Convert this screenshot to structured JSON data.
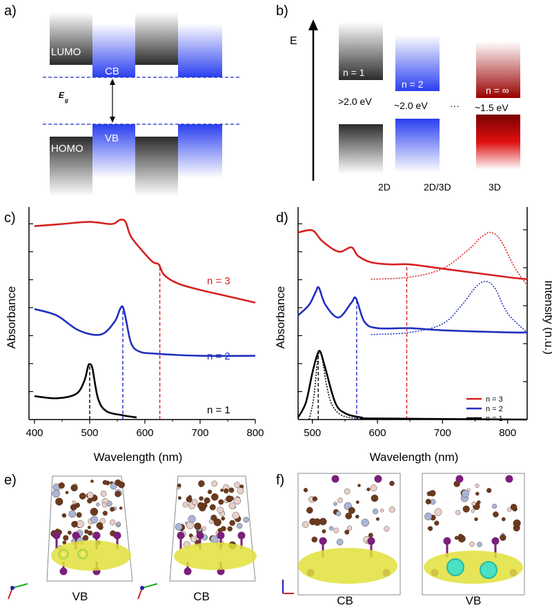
{
  "panels": {
    "a": {
      "label": "a)",
      "lumo": "LUMO",
      "cb": "CB",
      "homo": "HOMO",
      "vb": "VB",
      "eg": "E",
      "eg_sub": "g"
    },
    "b": {
      "label": "b)",
      "energy": "E",
      "n1": "n = 1",
      "n2": "n = 2",
      "ninf": "n = ∞",
      "e1": ">2.0 eV",
      "e2": "~2.0 eV",
      "e3": "~1.5 eV",
      "dots": "···",
      "d2": "2D",
      "d23": "2D/3D",
      "d3": "3D"
    },
    "c": {
      "label": "c)",
      "ylabel": "Absorbance",
      "xlabel": "Wavelength (nm)",
      "n3": "n = 3",
      "n2": "n = 2",
      "n1": "n = 1",
      "xticks": [
        "400",
        "500",
        "600",
        "700",
        "800"
      ]
    },
    "d": {
      "label": "d)",
      "ylabel": "Absorbance",
      "ylabel2": "Intensity (n.u.)",
      "xlabel": "Wavelength (nm)",
      "legend": [
        "n = 3",
        "n = 2",
        "n = 1"
      ],
      "xticks": [
        "500",
        "600",
        "700",
        "800"
      ]
    },
    "e": {
      "label": "e)",
      "vb": "VB",
      "cb": "CB"
    },
    "f": {
      "label": "f)",
      "cb": "CB",
      "vb": "VB"
    }
  },
  "colors": {
    "red": "#d62020",
    "blue": "#1f2fbf",
    "black": "#000000",
    "gray": "#555555"
  },
  "chart_data": [
    {
      "type": "line",
      "panel": "c",
      "xlabel": "Wavelength (nm)",
      "ylabel": "Absorbance",
      "xlim": [
        390,
        800
      ],
      "series": [
        {
          "name": "n = 3",
          "color": "#d62020",
          "x": [
            400,
            450,
            500,
            540,
            555,
            565,
            575,
            600,
            615,
            625,
            635,
            660,
            700,
            750,
            800
          ],
          "y": [
            0.91,
            0.92,
            0.93,
            0.92,
            0.94,
            0.93,
            0.86,
            0.78,
            0.74,
            0.73,
            0.68,
            0.64,
            0.61,
            0.58,
            0.55
          ]
        },
        {
          "name": "n = 2",
          "color": "#1f2fbf",
          "x": [
            400,
            440,
            480,
            520,
            545,
            555,
            560,
            565,
            575,
            590,
            620,
            700,
            800
          ],
          "y": [
            0.52,
            0.49,
            0.42,
            0.4,
            0.46,
            0.52,
            0.53,
            0.48,
            0.36,
            0.32,
            0.31,
            0.3,
            0.3
          ]
        },
        {
          "name": "n = 1",
          "color": "#000000",
          "x": [
            400,
            440,
            475,
            490,
            497,
            500,
            505,
            515,
            530,
            560,
            585
          ],
          "y": [
            0.11,
            0.1,
            0.12,
            0.18,
            0.25,
            0.26,
            0.24,
            0.1,
            0.04,
            0.02,
            0.01
          ]
        }
      ],
      "markers": [
        {
          "x": 500,
          "color": "#000000"
        },
        {
          "x": 560,
          "color": "#1f2fbf"
        },
        {
          "x": 627,
          "color": "#d62020"
        }
      ]
    },
    {
      "type": "line",
      "panel": "d",
      "xlabel": "Wavelength (nm)",
      "ylabel": "Absorbance",
      "ylabel2": "Intensity (n.u.)",
      "xlim": [
        478,
        830
      ],
      "series": [
        {
          "name": "n = 3",
          "color": "#d62020",
          "x": [
            478,
            500,
            515,
            540,
            560,
            570,
            590,
            620,
            650,
            700,
            750,
            800,
            830
          ],
          "y": [
            0.88,
            0.89,
            0.84,
            0.79,
            0.81,
            0.77,
            0.74,
            0.73,
            0.73,
            0.71,
            0.69,
            0.67,
            0.66
          ]
        },
        {
          "name": "n = 2",
          "color": "#1f2fbf",
          "x": [
            478,
            495,
            505,
            510,
            520,
            540,
            560,
            567,
            580,
            600,
            650,
            700,
            800,
            830
          ],
          "y": [
            0.49,
            0.54,
            0.6,
            0.62,
            0.54,
            0.48,
            0.55,
            0.57,
            0.46,
            0.43,
            0.43,
            0.42,
            0.41,
            0.41
          ]
        },
        {
          "name": "n = 1",
          "color": "#000000",
          "x": [
            478,
            490,
            500,
            507,
            512,
            520,
            535,
            550,
            575,
            600,
            830
          ],
          "y": [
            0.01,
            0.08,
            0.22,
            0.3,
            0.32,
            0.24,
            0.08,
            0.03,
            0.01,
            0.005,
            0.0
          ]
        }
      ],
      "pl_series": [
        {
          "name": "n = 3",
          "style": "dotted",
          "color": "#d62020",
          "x": [
            590,
            650,
            700,
            740,
            760,
            775,
            790,
            810,
            830
          ],
          "y": [
            0.66,
            0.67,
            0.71,
            0.8,
            0.86,
            0.88,
            0.84,
            0.72,
            0.63
          ]
        },
        {
          "name": "n = 2",
          "style": "dotted",
          "color": "#1f2fbf",
          "x": [
            590,
            650,
            700,
            730,
            750,
            765,
            780,
            800,
            830
          ],
          "y": [
            0.4,
            0.41,
            0.45,
            0.54,
            0.62,
            0.65,
            0.62,
            0.5,
            0.41
          ]
        },
        {
          "name": "n = 1",
          "style": "dotted",
          "color": "#000000",
          "x": [
            495,
            502,
            508,
            512,
            516,
            522,
            530,
            545,
            570,
            600
          ],
          "y": [
            0.0,
            0.1,
            0.28,
            0.32,
            0.27,
            0.16,
            0.07,
            0.02,
            0.005,
            0.0
          ]
        }
      ],
      "markers": [
        {
          "x": 509,
          "color": "#000000"
        },
        {
          "x": 568,
          "color": "#1f2fbf"
        },
        {
          "x": 645,
          "color": "#d62020"
        }
      ]
    }
  ]
}
